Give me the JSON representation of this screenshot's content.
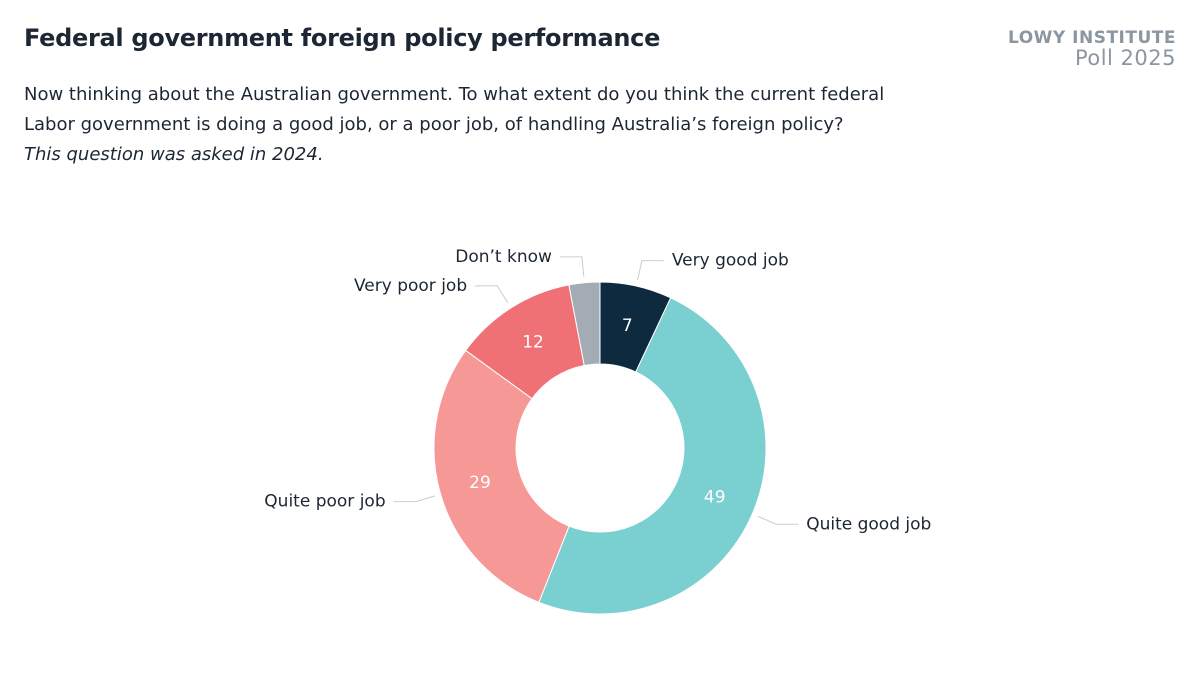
{
  "brand": {
    "name": "LOWY INSTITUTE",
    "edition": "Poll 2025"
  },
  "chart_data": {
    "type": "donut",
    "title": "Federal government foreign policy performance",
    "subtitle": [
      "Now thinking about the Australian government. To what extent do you think the current federal",
      "Labor government is doing a good job, or a poor job, of handling Australia’s foreign policy?"
    ],
    "note": "This question was asked in 2024.",
    "categories": [
      "Very good job",
      "Quite good job",
      "Quite poor job",
      "Very poor job",
      "Don’t know"
    ],
    "values": [
      7,
      49,
      29,
      12,
      3
    ],
    "colors": [
      "#0d2a3f",
      "#7acfd1",
      "#f59896",
      "#f07175",
      "#a3acb4"
    ]
  }
}
